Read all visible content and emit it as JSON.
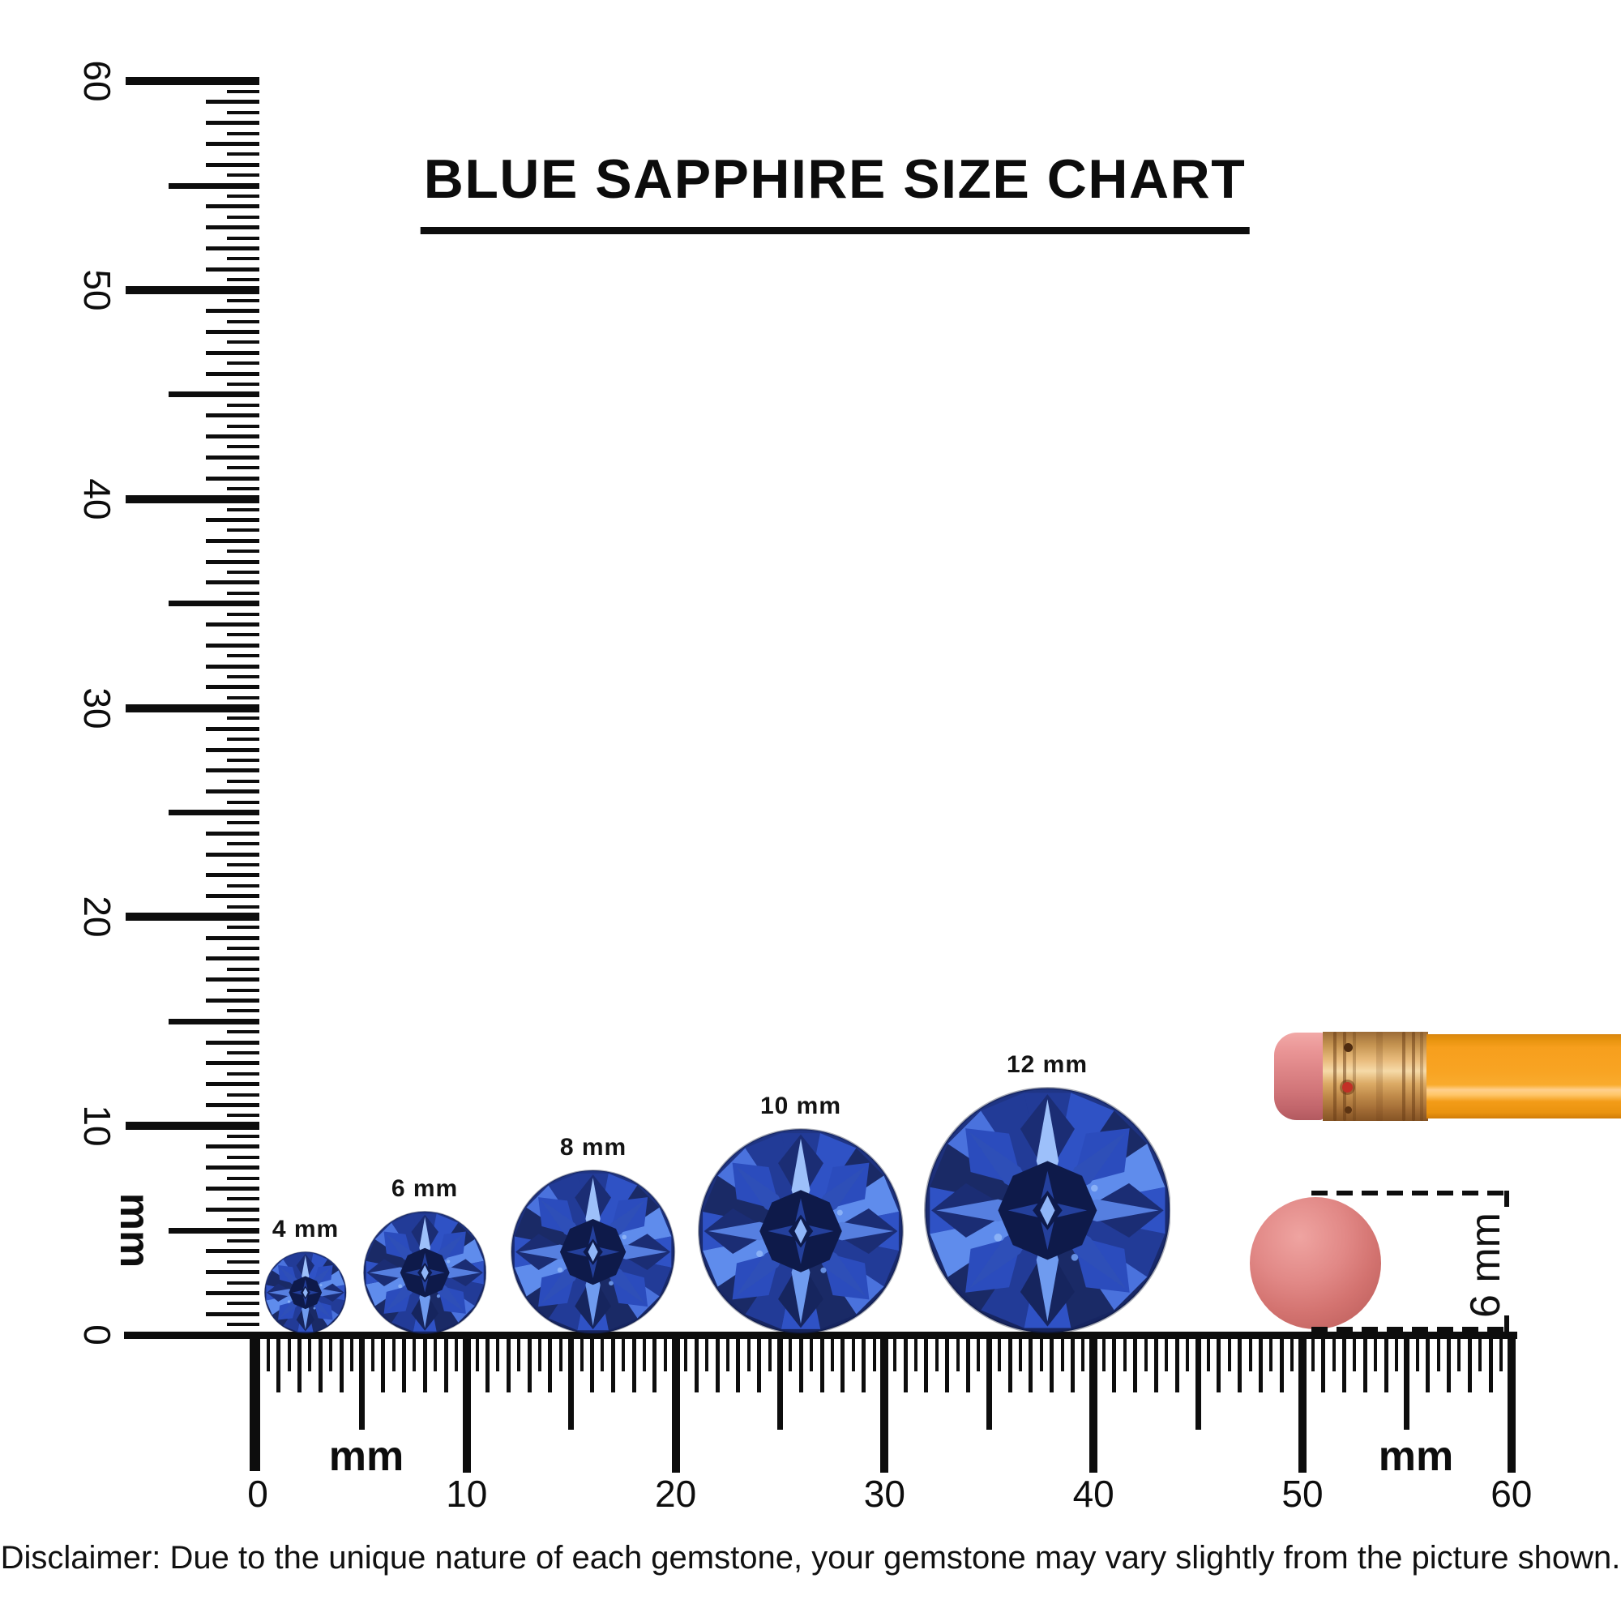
{
  "title": {
    "text": "BLUE SAPPHIRE SIZE CHART"
  },
  "rulers": {
    "unit": "mm",
    "vertical": {
      "min": 0,
      "max": 60,
      "label_step": 10,
      "tick_step": 0.5,
      "labels": [
        "0",
        "10",
        "20",
        "30",
        "40",
        "50",
        "60"
      ],
      "unit_label": "mm"
    },
    "horizontal": {
      "min": 0,
      "max": 60,
      "label_step": 10,
      "tick_step": 0.5,
      "labels": [
        "0",
        "10",
        "20",
        "30",
        "40",
        "50",
        "60"
      ],
      "unit_label_left": "mm",
      "unit_label_right": "mm"
    }
  },
  "gems": [
    {
      "label": "4 mm",
      "size_mm": 4
    },
    {
      "label": "6 mm",
      "size_mm": 6
    },
    {
      "label": "8 mm",
      "size_mm": 8
    },
    {
      "label": "10 mm",
      "size_mm": 10
    },
    {
      "label": "12 mm",
      "size_mm": 12
    }
  ],
  "eraser_comparison": {
    "label": "6 mm",
    "size_mm": 6
  },
  "disclaimer": {
    "text": "Disclaimer: Due to the unique nature of each gemstone, your gemstone may vary slightly from the picture shown."
  },
  "colors": {
    "ink": "#0d0d0d",
    "gem_navy": "#13214f",
    "gem_dark": "#1b2d74",
    "gem_royal": "#2b4cbd",
    "gem_light": "#5f8cec",
    "gem_pale": "#8fb5f7",
    "pencil_body_orange": "#f8a423",
    "pencil_ferrule_copper": "#c3924f",
    "pencil_eraser_pink": "#d07478",
    "eraser_disc_salmon": "#d37370"
  }
}
